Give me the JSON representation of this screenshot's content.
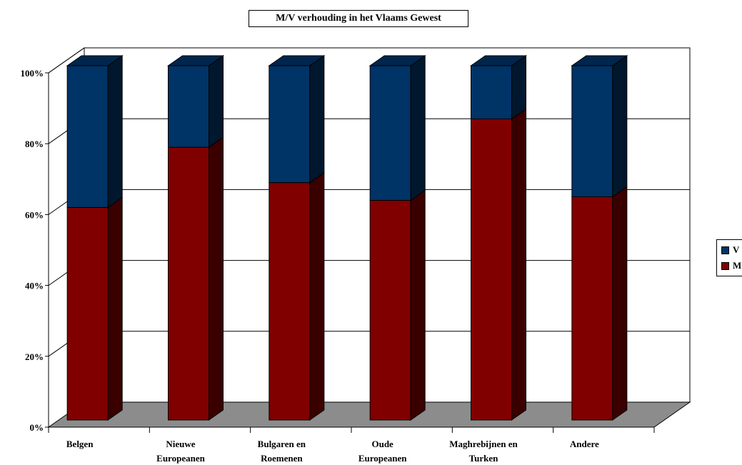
{
  "chart_data": {
    "type": "bar",
    "stacked": true,
    "three_d": true,
    "title": "M/V verhouding in het Vlaams Gewest",
    "categories": [
      [
        "Belgen"
      ],
      [
        "Nieuwe",
        "Europeanen"
      ],
      [
        "Bulgaren en",
        "Roemenen"
      ],
      [
        "Oude",
        "Europeanen"
      ],
      [
        "Maghrebijnen en",
        "Turken"
      ],
      [
        "Andere"
      ]
    ],
    "series": [
      {
        "name": "M",
        "color": "#800000",
        "values": [
          60,
          77,
          67,
          62,
          85,
          63
        ]
      },
      {
        "name": "V",
        "color": "#003366",
        "values": [
          40,
          23,
          33,
          38,
          15,
          37
        ]
      }
    ],
    "ylim": [
      0,
      100
    ],
    "yticks": [
      "0%",
      "20%",
      "40%",
      "60%",
      "80%",
      "100%"
    ],
    "grid": true,
    "legend_position": "right"
  }
}
